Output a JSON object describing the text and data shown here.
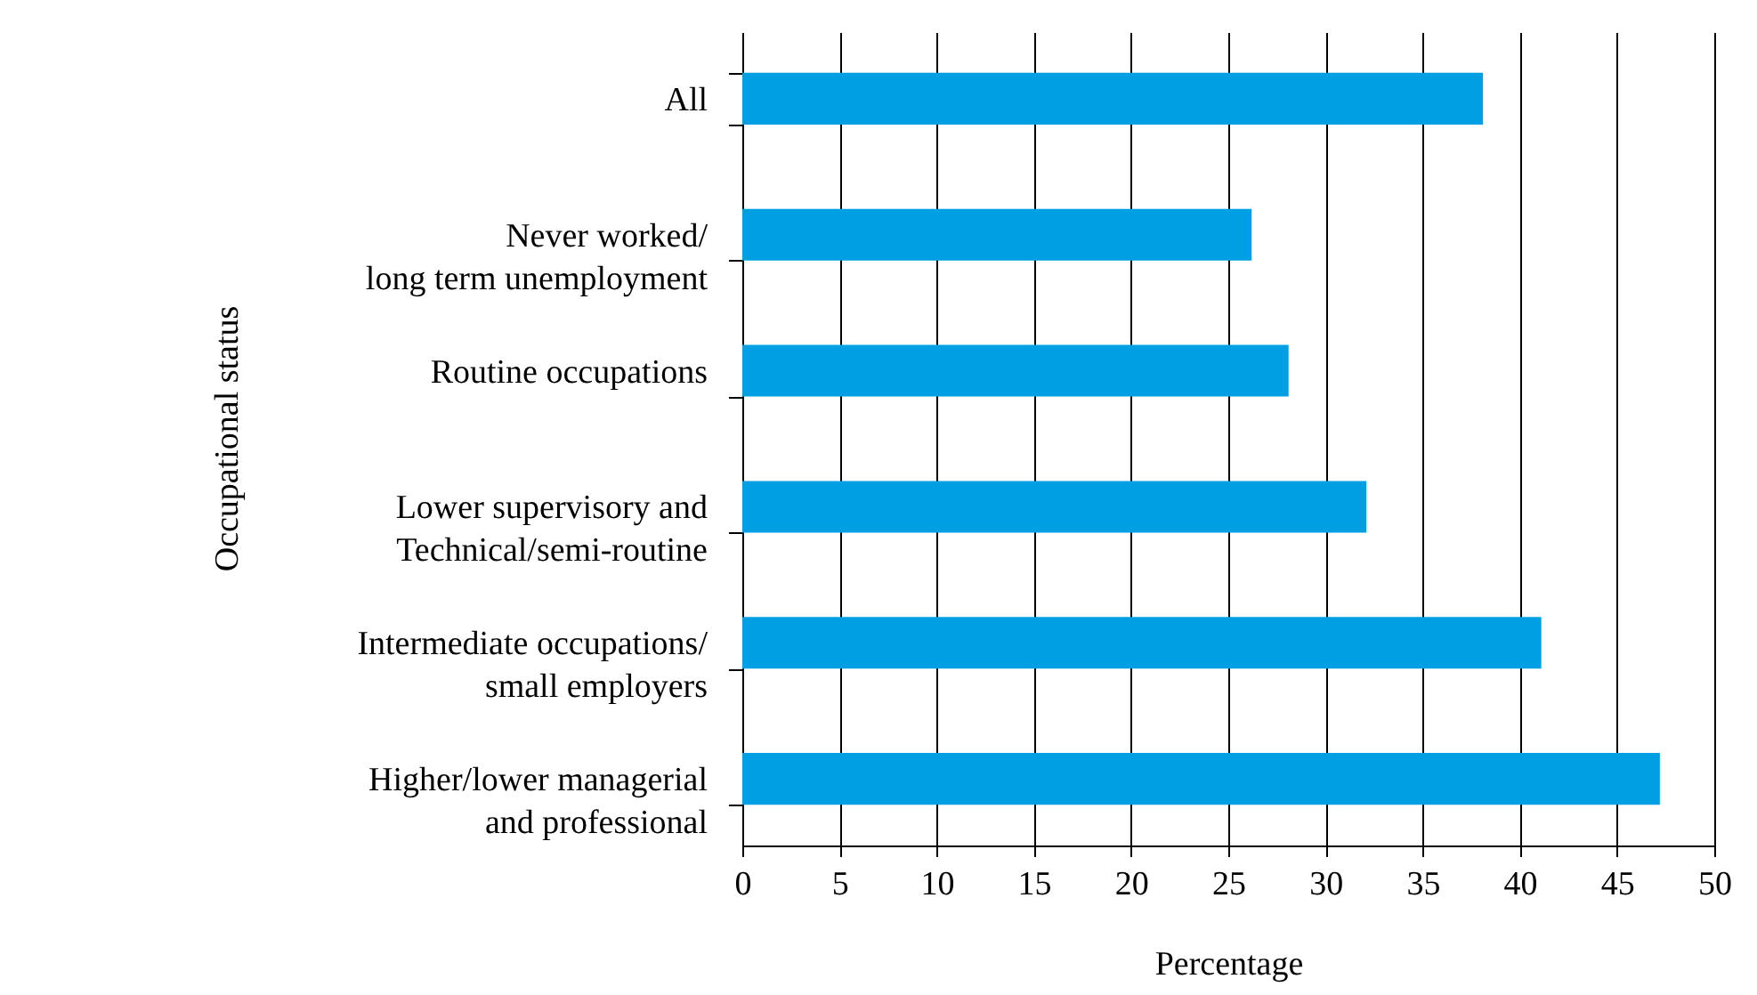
{
  "chart_data": {
    "type": "bar",
    "orientation": "horizontal",
    "xlabel": "Percentage",
    "ylabel": "Occupational status",
    "categories": [
      "All",
      "Never worked/\nlong term unemployment",
      "Routine occupations",
      "Lower supervisory and\nTechnical/semi-routine",
      "Intermediate occupations/\nsmall employers",
      "Higher/lower managerial\nand professional"
    ],
    "values": [
      38.1,
      26.2,
      28.1,
      32.1,
      41.1,
      47.2
    ],
    "color": "#009fe3",
    "xlim": [
      0,
      50
    ],
    "xticks": [
      0,
      5,
      10,
      15,
      20,
      25,
      30,
      35,
      40,
      45,
      50
    ],
    "grid": "x"
  }
}
